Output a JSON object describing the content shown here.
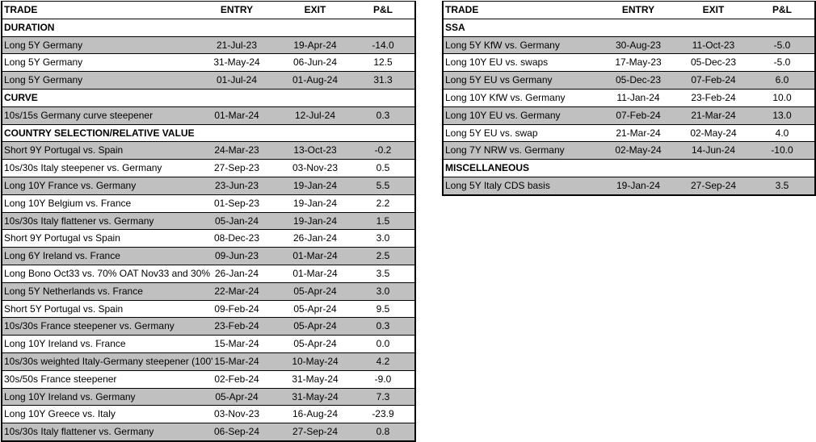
{
  "columns": [
    "TRADE",
    "ENTRY",
    "EXIT",
    "P&L"
  ],
  "colors": {
    "shaded_row": "#c0c0c0",
    "plain_row": "#ffffff"
  },
  "left_table": {
    "sections": [
      {
        "title": "DURATION",
        "rows": [
          {
            "trade": "Long 5Y Germany",
            "entry": "21-Jul-23",
            "exit": "19-Apr-24",
            "pnl": "-14.0"
          },
          {
            "trade": "Long 5Y Germany",
            "entry": "31-May-24",
            "exit": "06-Jun-24",
            "pnl": "12.5"
          },
          {
            "trade": "Long 5Y Germany",
            "entry": "01-Jul-24",
            "exit": "01-Aug-24",
            "pnl": "31.3"
          }
        ]
      },
      {
        "title": "CURVE",
        "rows": [
          {
            "trade": "10s/15s Germany curve steepener",
            "entry": "01-Mar-24",
            "exit": "12-Jul-24",
            "pnl": "0.3"
          }
        ]
      },
      {
        "title": "COUNTRY SELECTION/RELATIVE VALUE",
        "rows": [
          {
            "trade": "Short 9Y Portugal vs. Spain",
            "entry": "24-Mar-23",
            "exit": "13-Oct-23",
            "pnl": "-0.2"
          },
          {
            "trade": "10s/30s Italy steepener vs. Germany",
            "entry": "27-Sep-23",
            "exit": "03-Nov-23",
            "pnl": "0.5"
          },
          {
            "trade": "Long 10Y France vs. Germany",
            "entry": "23-Jun-23",
            "exit": "19-Jan-24",
            "pnl": "5.5"
          },
          {
            "trade": "Long 10Y Belgium vs. France",
            "entry": "01-Sep-23",
            "exit": "19-Jan-24",
            "pnl": "2.2"
          },
          {
            "trade": "10s/30s Italy flattener vs. Germany",
            "entry": "05-Jan-24",
            "exit": "19-Jan-24",
            "pnl": "1.5"
          },
          {
            "trade": "Short 9Y Portugal vs Spain",
            "entry": "08-Dec-23",
            "exit": "26-Jan-24",
            "pnl": "3.0"
          },
          {
            "trade": "Long 6Y Ireland vs. France",
            "entry": "09-Jun-23",
            "exit": "01-Mar-24",
            "pnl": "2.5"
          },
          {
            "trade": "Long Bono Oct33 vs. 70% OAT Nov33 and 30%",
            "entry": "26-Jan-24",
            "exit": "01-Mar-24",
            "pnl": "3.5"
          },
          {
            "trade": "Long 5Y Netherlands vs. France",
            "entry": "22-Mar-24",
            "exit": "05-Apr-24",
            "pnl": "3.0"
          },
          {
            "trade": "Short 5Y Portugal vs. Spain",
            "entry": "09-Feb-24",
            "exit": "05-Apr-24",
            "pnl": "9.5"
          },
          {
            "trade": "10s/30s France steepener vs. Germany",
            "entry": "23-Feb-24",
            "exit": "05-Apr-24",
            "pnl": "0.3"
          },
          {
            "trade": "Long 10Y Ireland vs. France",
            "entry": "15-Mar-24",
            "exit": "05-Apr-24",
            "pnl": "0.0"
          },
          {
            "trade": "10s/30s weighted Italy-Germany steepener (100'",
            "entry": "15-Mar-24",
            "exit": "10-May-24",
            "pnl": "4.2"
          },
          {
            "trade": "30s/50s France steepener",
            "entry": "02-Feb-24",
            "exit": "31-May-24",
            "pnl": "-9.0"
          },
          {
            "trade": "Long 10Y Ireland vs. Germany",
            "entry": "05-Apr-24",
            "exit": "31-May-24",
            "pnl": "7.3"
          },
          {
            "trade": "Long 10Y Greece vs. Italy",
            "entry": "03-Nov-23",
            "exit": "16-Aug-24",
            "pnl": "-23.9"
          },
          {
            "trade": "10s/30s Italy flattener vs. Germany",
            "entry": "06-Sep-24",
            "exit": "27-Sep-24",
            "pnl": "0.8"
          }
        ]
      }
    ]
  },
  "right_table": {
    "sections": [
      {
        "title": "SSA",
        "rows": [
          {
            "trade": "Long 5Y KfW vs. Germany",
            "entry": "30-Aug-23",
            "exit": "11-Oct-23",
            "pnl": "-5.0"
          },
          {
            "trade": "Long 10Y EU vs. swaps",
            "entry": "17-May-23",
            "exit": "05-Dec-23",
            "pnl": "-5.0"
          },
          {
            "trade": "Long 5Y EU vs Germany",
            "entry": "05-Dec-23",
            "exit": "07-Feb-24",
            "pnl": "6.0"
          },
          {
            "trade": "Long 10Y KfW vs. Germany",
            "entry": "11-Jan-24",
            "exit": "23-Feb-24",
            "pnl": "10.0"
          },
          {
            "trade": "Long 10Y EU vs. Germany",
            "entry": "07-Feb-24",
            "exit": "21-Mar-24",
            "pnl": "13.0"
          },
          {
            "trade": "Long 5Y EU vs. swap",
            "entry": "21-Mar-24",
            "exit": "02-May-24",
            "pnl": "4.0"
          },
          {
            "trade": "Long 7Y NRW vs. Germany",
            "entry": "02-May-24",
            "exit": "14-Jun-24",
            "pnl": "-10.0"
          }
        ]
      },
      {
        "title": "MISCELLANEOUS",
        "rows": [
          {
            "trade": "Long 5Y Italy CDS basis",
            "entry": "19-Jan-24",
            "exit": "27-Sep-24",
            "pnl": "3.5"
          }
        ]
      }
    ]
  }
}
